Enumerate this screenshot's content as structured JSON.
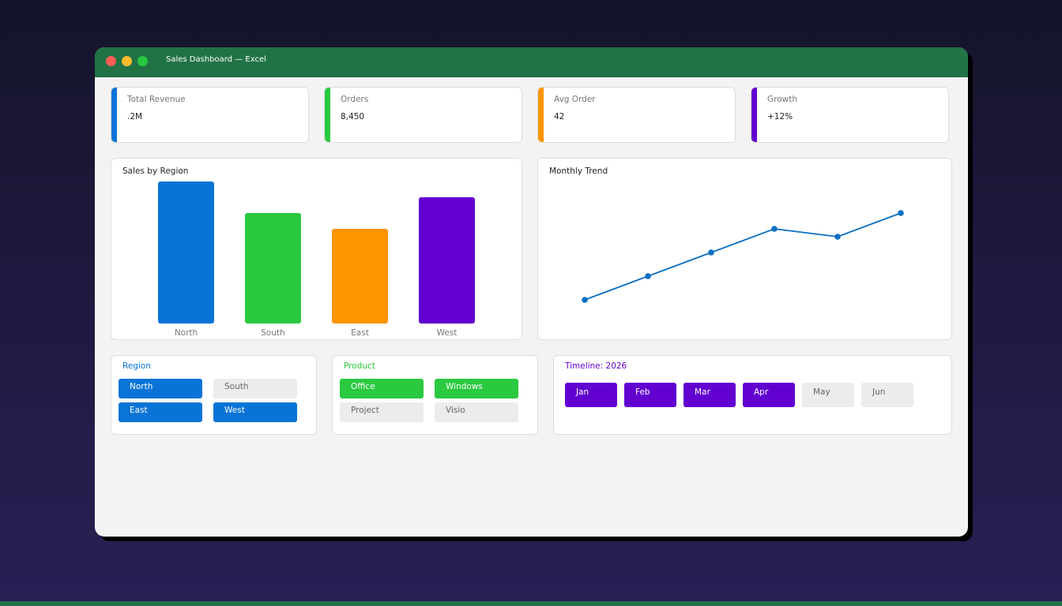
{
  "window": {
    "title": "Sales Dashboard — Excel"
  },
  "kpis": [
    {
      "label": "Total Revenue",
      "value": ".2M",
      "color": "#0a74d6"
    },
    {
      "label": "Orders",
      "value": "8,450",
      "color": "#2ac940"
    },
    {
      "label": "Avg Order",
      "value": "42",
      "color": "#ff9500"
    },
    {
      "label": "Growth",
      "value": "+12%",
      "color": "#6200d0"
    }
  ],
  "chart_data": [
    {
      "type": "bar",
      "title": "Sales by Region",
      "categories": [
        "North",
        "South",
        "East",
        "West"
      ],
      "values": [
        180,
        140,
        120,
        160
      ],
      "colors": [
        "#0a74d6",
        "#2ac940",
        "#ff9500",
        "#6200d0"
      ],
      "ylim": [
        0,
        180
      ]
    },
    {
      "type": "line",
      "title": "Monthly Trend",
      "values": [
        30,
        60,
        90,
        120,
        110,
        140
      ],
      "color": "#0a6fc2",
      "ylim": [
        0,
        180
      ]
    }
  ],
  "slicers": [
    {
      "title": "Region",
      "color": "#0a74d6",
      "items": [
        {
          "label": "North",
          "selected": true
        },
        {
          "label": "South",
          "selected": false
        },
        {
          "label": "East",
          "selected": true
        },
        {
          "label": "West",
          "selected": true
        }
      ]
    },
    {
      "title": "Product",
      "color": "#2ac940",
      "items": [
        {
          "label": "Office",
          "selected": true
        },
        {
          "label": "Windows",
          "selected": true
        },
        {
          "label": "Project",
          "selected": false
        },
        {
          "label": "Visio",
          "selected": false
        }
      ]
    }
  ],
  "timeline": {
    "title": "Timeline: 2026",
    "color": "#6200d0",
    "items": [
      {
        "label": "Jan",
        "selected": true
      },
      {
        "label": "Feb",
        "selected": true
      },
      {
        "label": "Mar",
        "selected": true
      },
      {
        "label": "Apr",
        "selected": true
      },
      {
        "label": "May",
        "selected": false
      },
      {
        "label": "Jun",
        "selected": false
      }
    ]
  }
}
